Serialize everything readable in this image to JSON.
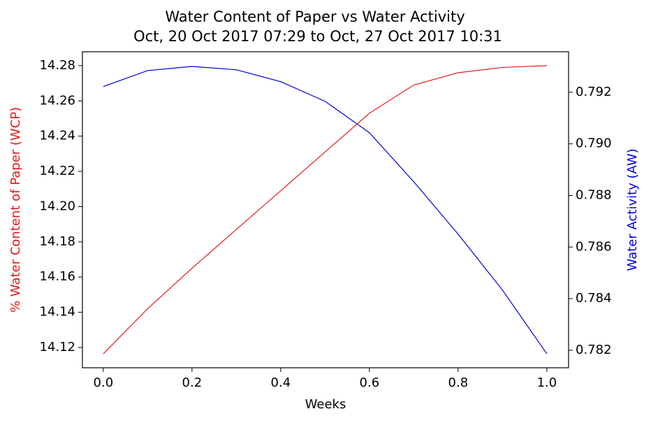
{
  "chart_data": {
    "type": "line",
    "title": "Water Content of Paper vs Water Activity",
    "subtitle": "Oct, 20 Oct 2017 07:29 to Oct, 27 Oct 2017 10:31",
    "x_label": "Weeks",
    "y_label": "% Water Content of Paper (WCP)",
    "y2_label": "Water Activity (AW)",
    "x": [
      0,
      0.1,
      0.2,
      0.3,
      0.4,
      0.5,
      0.6,
      0.7,
      0.8,
      0.9,
      1.0
    ],
    "series": [
      {
        "name": "% Water Content of Paper (WCP)",
        "color": "#e41a1c",
        "axis": "y",
        "values": [
          14.1164,
          14.142,
          14.165,
          14.187,
          14.209,
          14.231,
          14.253,
          14.269,
          14.276,
          14.279,
          14.28
        ]
      },
      {
        "name": "Water Activity (AW)",
        "color": "#0000dd",
        "axis": "y2",
        "values": [
          0.79222,
          0.79284,
          0.793,
          0.79287,
          0.79241,
          0.79165,
          0.79043,
          0.78853,
          0.7865,
          0.78433,
          0.78186
        ]
      }
    ],
    "xlim": [
      -0.047,
      1.049
    ],
    "xticks": [
      {
        "value": 0,
        "label": "0.0"
      },
      {
        "value": 0.2,
        "label": "0.2"
      },
      {
        "value": 0.4,
        "label": "0.4"
      },
      {
        "value": 0.6,
        "label": "0.6"
      },
      {
        "value": 0.8,
        "label": "0.8"
      },
      {
        "value": 1.0,
        "label": "1.0"
      }
    ],
    "ylim": [
      14.1085,
      14.2879
    ],
    "yticks": [
      {
        "value": 14.12,
        "label": "14.12"
      },
      {
        "value": 14.14,
        "label": "14.14"
      },
      {
        "value": 14.16,
        "label": "14.16"
      },
      {
        "value": 14.18,
        "label": "14.18"
      },
      {
        "value": 14.2,
        "label": "14.20"
      },
      {
        "value": 14.22,
        "label": "14.22"
      },
      {
        "value": 14.24,
        "label": "14.24"
      },
      {
        "value": 14.26,
        "label": "14.26"
      },
      {
        "value": 14.28,
        "label": "14.28"
      }
    ],
    "y2lim": [
      0.78132,
      0.79357
    ],
    "y2ticks": [
      {
        "value": 0.782,
        "label": "0.782"
      },
      {
        "value": 0.784,
        "label": "0.784"
      },
      {
        "value": 0.786,
        "label": "0.786"
      },
      {
        "value": 0.788,
        "label": "0.788"
      },
      {
        "value": 0.79,
        "label": "0.790"
      },
      {
        "value": 0.792,
        "label": "0.792"
      }
    ],
    "grid": false
  }
}
